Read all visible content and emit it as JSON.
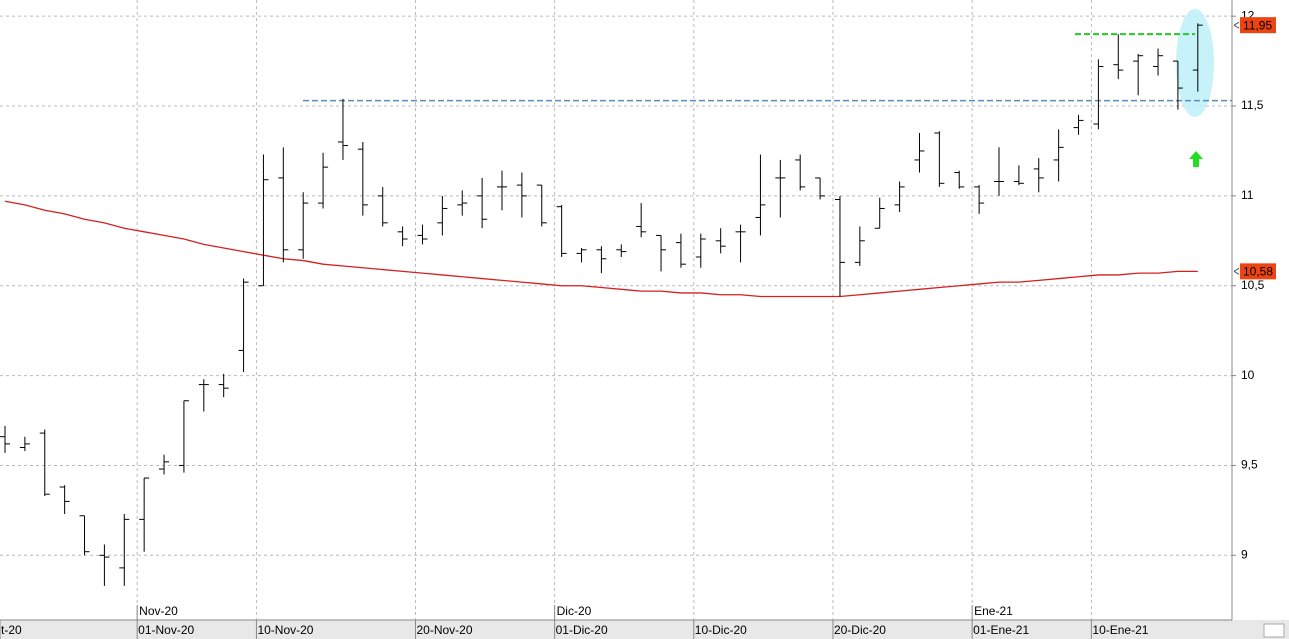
{
  "chart_data": {
    "type": "ohlc",
    "ylim": [
      8.64,
      12.09
    ],
    "yticks": [
      {
        "value": 9,
        "label": "9"
      },
      {
        "value": 9.5,
        "label": "9,5"
      },
      {
        "value": 10,
        "label": "10"
      },
      {
        "value": 10.5,
        "label": "10,5"
      },
      {
        "value": 11,
        "label": "11"
      },
      {
        "value": 11.5,
        "label": "11,5"
      },
      {
        "value": 12,
        "label": "12"
      }
    ],
    "grid": true,
    "categories": [
      "t-20",
      null,
      null,
      null,
      null,
      null,
      null,
      "01-Nov-20",
      null,
      null,
      null,
      null,
      null,
      "10-Nov-20",
      null,
      null,
      null,
      null,
      null,
      null,
      null,
      "20-Nov-20",
      null,
      null,
      null,
      null,
      null,
      null,
      "01-Dic-20",
      null,
      null,
      null,
      null,
      null,
      null,
      "10-Dic-20",
      null,
      null,
      null,
      null,
      null,
      null,
      "20-Dic-20",
      null,
      null,
      null,
      null,
      null,
      null,
      "01-Ene-21",
      null,
      null,
      null,
      null,
      null,
      "10-Ene-21",
      null,
      null,
      null,
      null,
      null
    ],
    "month_labels": [
      null,
      null,
      null,
      null,
      null,
      null,
      null,
      "Nov-20",
      null,
      null,
      null,
      null,
      null,
      null,
      null,
      null,
      null,
      null,
      null,
      null,
      null,
      null,
      null,
      null,
      null,
      null,
      null,
      null,
      "Dic-20",
      null,
      null,
      null,
      null,
      null,
      null,
      null,
      null,
      null,
      null,
      null,
      null,
      null,
      null,
      null,
      null,
      null,
      null,
      null,
      null,
      "Ene-21",
      null,
      null,
      null,
      null,
      null,
      null,
      null,
      null,
      null,
      null,
      null
    ],
    "color": "#000000",
    "open": [
      9.66,
      9.6,
      9.68,
      9.38,
      9.22,
      9.0,
      8.93,
      9.2,
      9.48,
      9.5,
      9.95,
      9.95,
      10.14,
      10.5,
      11.1,
      10.7,
      10.96,
      11.3,
      11.26,
      11.0,
      10.8,
      10.78,
      10.85,
      10.95,
      11.0,
      11.05,
      11.06,
      11.06,
      10.94,
      10.68,
      10.7,
      10.7,
      10.83,
      10.78,
      10.74,
      10.66,
      10.75,
      10.8,
      10.88,
      11.1,
      11.2,
      11.1,
      10.98,
      10.63,
      10.82,
      10.95,
      11.2,
      11.35,
      11.13,
      11.05,
      11.08,
      11.08,
      11.15,
      11.2,
      11.38,
      11.4,
      11.73,
      11.75,
      11.72,
      11.75,
      11.7
    ],
    "high": [
      9.72,
      9.66,
      9.7,
      9.39,
      9.22,
      9.06,
      9.23,
      9.43,
      9.56,
      9.86,
      9.98,
      10.01,
      10.54,
      11.23,
      11.27,
      11.02,
      11.24,
      11.54,
      11.3,
      11.05,
      10.83,
      10.84,
      11.0,
      11.03,
      11.1,
      11.14,
      11.13,
      11.06,
      10.95,
      10.71,
      10.72,
      10.73,
      10.96,
      10.78,
      10.79,
      10.79,
      10.82,
      10.84,
      11.23,
      11.2,
      11.23,
      11.1,
      11.0,
      10.83,
      10.99,
      11.08,
      11.35,
      11.36,
      11.14,
      11.06,
      11.27,
      11.17,
      11.21,
      11.37,
      11.45,
      11.76,
      11.9,
      11.79,
      11.82,
      11.75,
      11.96
    ],
    "low": [
      9.57,
      9.58,
      9.33,
      9.23,
      9.0,
      8.83,
      8.83,
      9.02,
      9.45,
      9.46,
      9.8,
      9.88,
      10.02,
      10.5,
      10.63,
      10.65,
      10.93,
      11.2,
      10.89,
      10.83,
      10.72,
      10.73,
      10.78,
      10.89,
      10.82,
      10.92,
      10.88,
      10.83,
      10.66,
      10.63,
      10.57,
      10.66,
      10.77,
      10.58,
      10.6,
      10.6,
      10.68,
      10.63,
      10.78,
      10.88,
      11.03,
      10.98,
      10.44,
      10.61,
      10.82,
      10.91,
      11.13,
      11.05,
      11.04,
      10.9,
      11.0,
      11.06,
      11.02,
      11.08,
      11.34,
      11.37,
      11.65,
      11.56,
      11.67,
      11.48,
      11.58
    ],
    "close": [
      9.62,
      9.62,
      9.34,
      9.3,
      9.02,
      8.99,
      9.2,
      9.43,
      9.52,
      9.86,
      9.95,
      9.93,
      10.52,
      11.09,
      10.7,
      10.96,
      11.16,
      11.28,
      10.95,
      10.85,
      10.76,
      10.76,
      10.93,
      10.96,
      10.87,
      11.05,
      11.0,
      10.85,
      10.68,
      10.7,
      10.65,
      10.69,
      10.8,
      10.7,
      10.62,
      10.76,
      10.72,
      10.8,
      10.95,
      11.1,
      11.05,
      11.0,
      10.63,
      10.75,
      10.93,
      11.05,
      11.25,
      11.07,
      11.05,
      10.96,
      11.08,
      11.07,
      11.1,
      11.27,
      11.42,
      11.72,
      11.7,
      11.78,
      11.78,
      11.6,
      11.95
    ],
    "moving_average": {
      "color": "#d42020",
      "values": [
        10.97,
        10.95,
        10.92,
        10.9,
        10.87,
        10.85,
        10.82,
        10.8,
        10.78,
        10.76,
        10.73,
        10.71,
        10.69,
        10.67,
        10.65,
        10.64,
        10.62,
        10.61,
        10.6,
        10.59,
        10.58,
        10.57,
        10.56,
        10.55,
        10.54,
        10.53,
        10.52,
        10.51,
        10.5,
        10.5,
        10.49,
        10.48,
        10.47,
        10.47,
        10.46,
        10.46,
        10.45,
        10.45,
        10.44,
        10.44,
        10.44,
        10.44,
        10.44,
        10.45,
        10.46,
        10.47,
        10.48,
        10.49,
        10.5,
        10.51,
        10.52,
        10.52,
        10.53,
        10.54,
        10.55,
        10.56,
        10.56,
        10.57,
        10.57,
        10.58,
        10.58
      ]
    },
    "levels": [
      {
        "value": 11.53,
        "color": "#5a8db8"
      },
      {
        "value": 11.9,
        "color": "#22cc22"
      }
    ],
    "price_tags": [
      {
        "value": 11.95,
        "label": "11,95",
        "color": "#ee4411"
      },
      {
        "value": 10.58,
        "label": "10,58",
        "color": "#ee4411"
      }
    ]
  }
}
